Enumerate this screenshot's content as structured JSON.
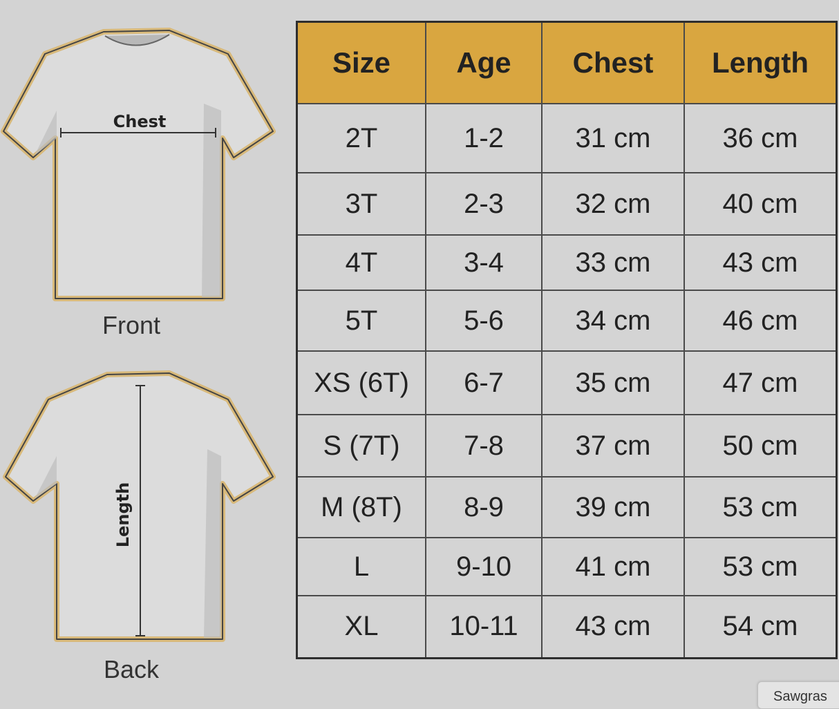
{
  "front": {
    "label": "Front",
    "measure_label": "Chest"
  },
  "back": {
    "label": "Back",
    "measure_label": "Length"
  },
  "table": {
    "headers": [
      "Size",
      "Age",
      "Chest",
      "Length"
    ],
    "rows": [
      [
        "2T",
        "1-2",
        "31 cm",
        "36 cm"
      ],
      [
        "3T",
        "2-3",
        "32 cm",
        "40 cm"
      ],
      [
        "4T",
        "3-4",
        "33 cm",
        "43 cm"
      ],
      [
        "5T",
        "5-6",
        "34 cm",
        "46 cm"
      ],
      [
        "XS (6T)",
        "6-7",
        "35 cm",
        "47 cm"
      ],
      [
        "S (7T)",
        "7-8",
        "37 cm",
        "50 cm"
      ],
      [
        "M (8T)",
        "8-9",
        "39 cm",
        "53 cm"
      ],
      [
        "L",
        "9-10",
        "41 cm",
        "53 cm"
      ],
      [
        "XL",
        "10-11",
        "43 cm",
        "54 cm"
      ]
    ]
  },
  "tooltip": "Sawgras",
  "colors": {
    "header": "#d9a640",
    "background": "#d3d3d3",
    "outline": "#d8b97a"
  }
}
